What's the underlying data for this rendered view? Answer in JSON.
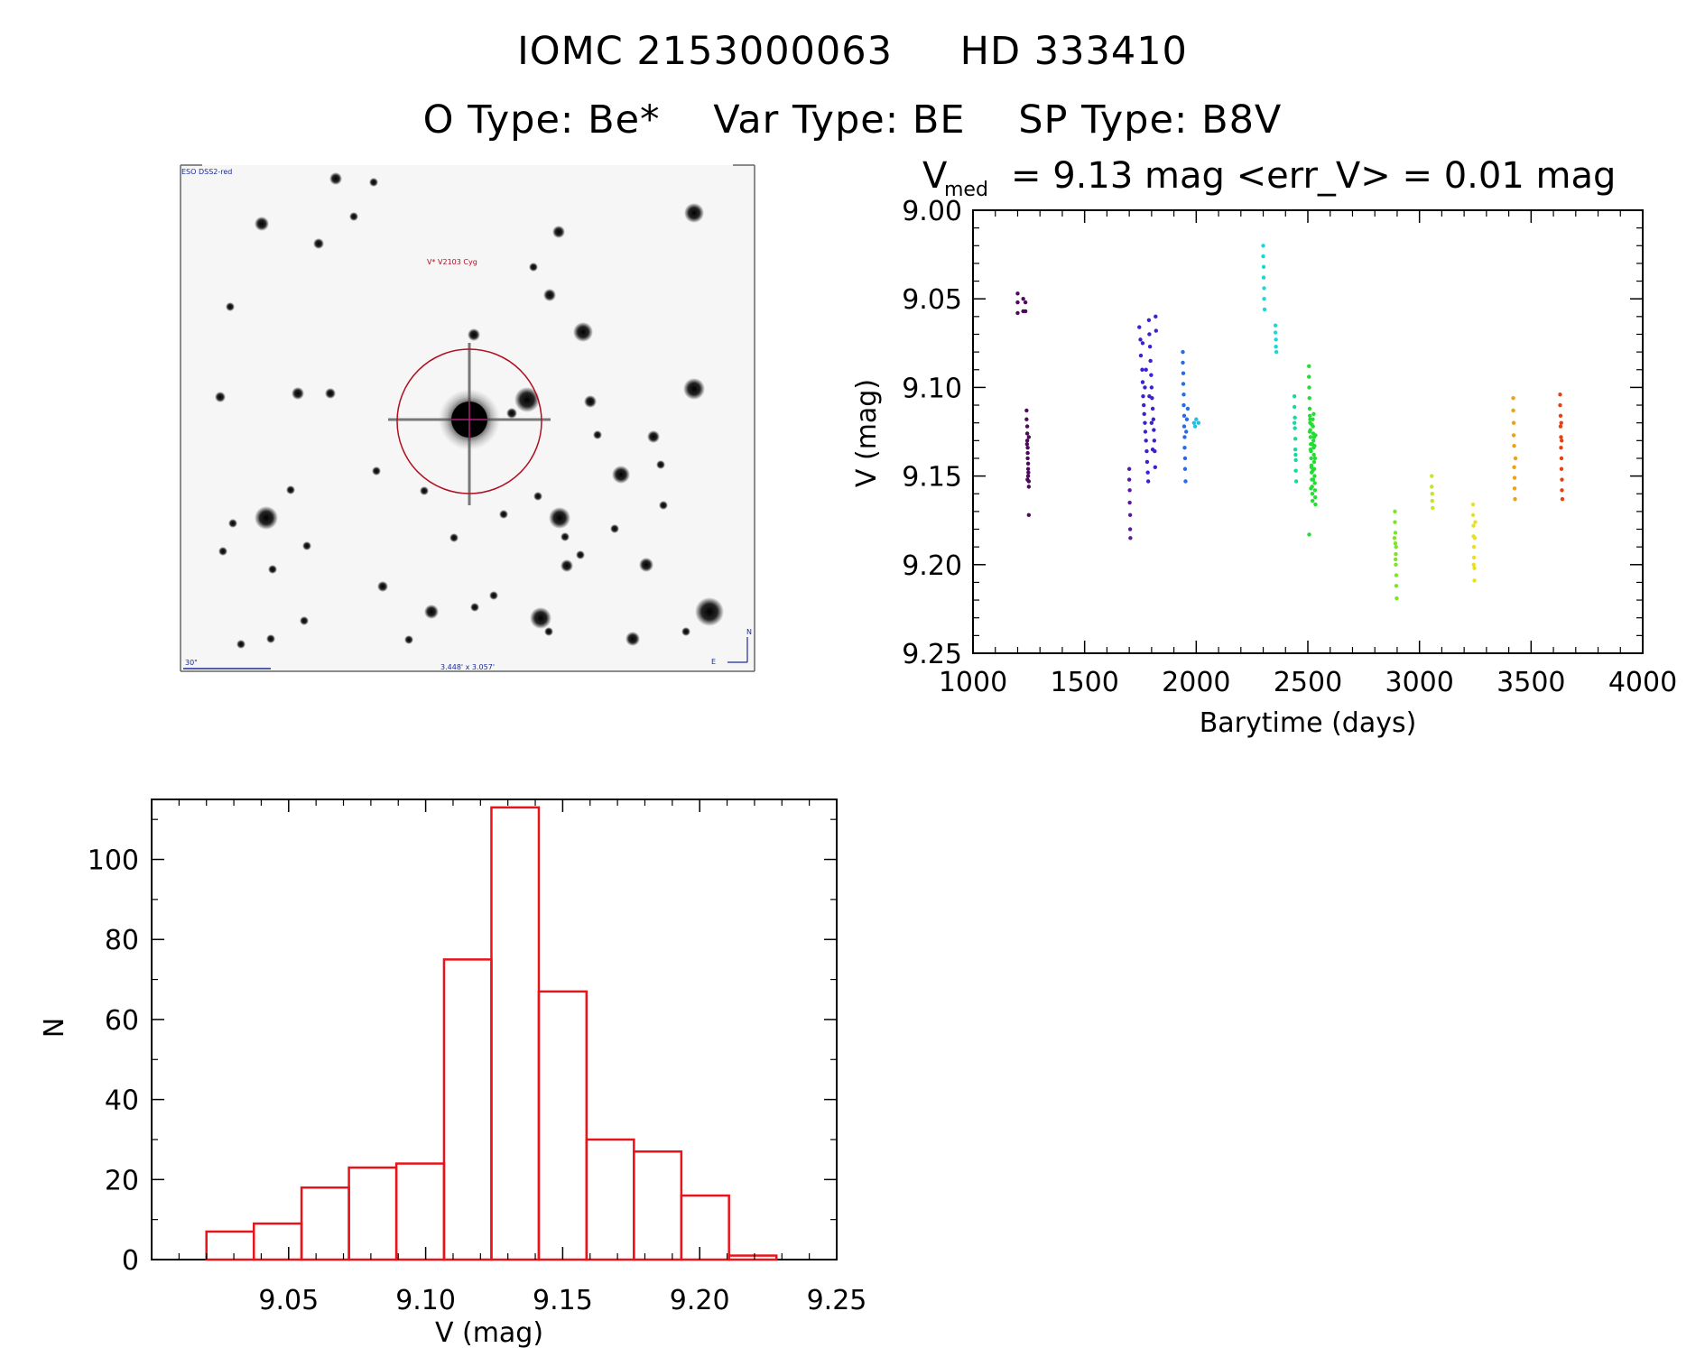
{
  "header": {
    "id_iomc": "IOMC 2153000063",
    "id_name": "HD 333410",
    "o_type": "O Type: Be*",
    "var_type": "Var Type: BE",
    "sp_type": "SP Type: B8V"
  },
  "sky_image": {
    "survey_label": "ESO DSS2-red",
    "target_label": "V* V2103 Cyg",
    "scale_label": "30\"",
    "size_label": "3.448' x 3.057'",
    "north_label": "N",
    "east_label": "E"
  },
  "chart_data": [
    {
      "type": "scatter",
      "title_prefix": "V",
      "title_subscript": "med",
      "title_rest": "= 9.13 mag <err_V> = 0.01 mag",
      "xlabel": "Barytime (days)",
      "ylabel": "V (mag)",
      "xlim": [
        1000,
        4000
      ],
      "ylim": [
        9.25,
        9.0
      ],
      "y_inverted": true,
      "x_ticks": [
        "1000",
        "1500",
        "2000",
        "2500",
        "3000",
        "3500",
        "4000"
      ],
      "y_ticks": [
        "9.00",
        "9.05",
        "9.10",
        "9.15",
        "9.20",
        "9.25"
      ],
      "grid": false,
      "colors_note": "points colored by time (rainbow: purple to red)",
      "series": [
        {
          "color": "#4b0a5a",
          "points": [
            [
              1200,
              9.047
            ],
            [
              1200,
              9.052
            ],
            [
              1200,
              9.058
            ],
            [
              1225,
              9.05
            ],
            [
              1225,
              9.057
            ],
            [
              1235,
              9.052
            ],
            [
              1235,
              9.057
            ]
          ]
        },
        {
          "color": "#4b0a5a",
          "points": [
            [
              1240,
              9.113
            ],
            [
              1240,
              9.118
            ],
            [
              1243,
              9.122
            ],
            [
              1243,
              9.126
            ],
            [
              1243,
              9.13
            ],
            [
              1245,
              9.134
            ],
            [
              1245,
              9.137
            ],
            [
              1245,
              9.14
            ],
            [
              1247,
              9.143
            ],
            [
              1247,
              9.146
            ],
            [
              1247,
              9.15
            ],
            [
              1250,
              9.153
            ],
            [
              1250,
              9.156
            ],
            [
              1250,
              9.128
            ],
            [
              1242,
              9.132
            ],
            [
              1248,
              9.148
            ],
            [
              1244,
              9.152
            ],
            [
              1250,
              9.172
            ]
          ]
        },
        {
          "color": "#5a1a9a",
          "points": [
            [
              1700,
              9.146
            ],
            [
              1700,
              9.152
            ],
            [
              1702,
              9.158
            ],
            [
              1702,
              9.165
            ],
            [
              1704,
              9.172
            ],
            [
              1704,
              9.18
            ],
            [
              1705,
              9.185
            ]
          ]
        },
        {
          "color": "#3a22d0",
          "points": [
            [
              1745,
              9.066
            ],
            [
              1750,
              9.073
            ],
            [
              1752,
              9.082
            ],
            [
              1758,
              9.09
            ],
            [
              1760,
              9.097
            ],
            [
              1762,
              9.105
            ],
            [
              1765,
              9.11
            ],
            [
              1767,
              9.115
            ],
            [
              1770,
              9.12
            ],
            [
              1772,
              9.125
            ],
            [
              1775,
              9.13
            ],
            [
              1778,
              9.136
            ],
            [
              1780,
              9.142
            ],
            [
              1783,
              9.148
            ],
            [
              1785,
              9.153
            ],
            [
              1788,
              9.062
            ],
            [
              1790,
              9.07
            ],
            [
              1793,
              9.077
            ],
            [
              1795,
              9.085
            ],
            [
              1798,
              9.093
            ],
            [
              1800,
              9.1
            ],
            [
              1802,
              9.106
            ],
            [
              1805,
              9.112
            ],
            [
              1808,
              9.118
            ],
            [
              1810,
              9.124
            ],
            [
              1812,
              9.13
            ],
            [
              1814,
              9.136
            ],
            [
              1816,
              9.145
            ],
            [
              1818,
              9.06
            ],
            [
              1820,
              9.068
            ],
            [
              1760,
              9.075
            ],
            [
              1775,
              9.09
            ],
            [
              1790,
              9.105
            ],
            [
              1805,
              9.135
            ],
            [
              1770,
              9.1
            ],
            [
              1800,
              9.12
            ]
          ]
        },
        {
          "color": "#2a6ae8",
          "points": [
            [
              1940,
              9.08
            ],
            [
              1940,
              9.086
            ],
            [
              1942,
              9.092
            ],
            [
              1942,
              9.098
            ],
            [
              1944,
              9.104
            ],
            [
              1944,
              9.11
            ],
            [
              1946,
              9.116
            ],
            [
              1946,
              9.122
            ],
            [
              1948,
              9.128
            ],
            [
              1948,
              9.134
            ],
            [
              1950,
              9.14
            ],
            [
              1950,
              9.146
            ],
            [
              1952,
              9.153
            ],
            [
              1955,
              9.125
            ],
            [
              1958,
              9.118
            ],
            [
              1962,
              9.112
            ]
          ]
        },
        {
          "color": "#22c0e0",
          "points": [
            [
              1990,
              9.12
            ],
            [
              2000,
              9.118
            ],
            [
              2010,
              9.12
            ],
            [
              1995,
              9.122
            ]
          ]
        },
        {
          "color": "#18d8d8",
          "points": [
            [
              2300,
              9.02
            ],
            [
              2300,
              9.026
            ],
            [
              2302,
              9.032
            ],
            [
              2302,
              9.038
            ],
            [
              2304,
              9.044
            ],
            [
              2304,
              9.05
            ],
            [
              2306,
              9.056
            ],
            [
              2355,
              9.065
            ],
            [
              2355,
              9.069
            ],
            [
              2357,
              9.073
            ],
            [
              2357,
              9.077
            ],
            [
              2359,
              9.08
            ]
          ]
        },
        {
          "color": "#18d8a0",
          "points": [
            [
              2440,
              9.105
            ],
            [
              2440,
              9.111
            ],
            [
              2442,
              9.117
            ],
            [
              2442,
              9.123
            ],
            [
              2444,
              9.129
            ],
            [
              2444,
              9.135
            ],
            [
              2446,
              9.141
            ],
            [
              2446,
              9.147
            ],
            [
              2448,
              9.153
            ],
            [
              2440,
              9.12
            ],
            [
              2445,
              9.138
            ]
          ]
        },
        {
          "color": "#22dd33",
          "points": [
            [
              2505,
              9.088
            ],
            [
              2505,
              9.094
            ],
            [
              2506,
              9.1
            ],
            [
              2507,
              9.106
            ],
            [
              2508,
              9.112
            ],
            [
              2509,
              9.116
            ],
            [
              2510,
              9.12
            ],
            [
              2511,
              9.124
            ],
            [
              2512,
              9.128
            ],
            [
              2513,
              9.132
            ],
            [
              2514,
              9.136
            ],
            [
              2515,
              9.14
            ],
            [
              2516,
              9.144
            ],
            [
              2517,
              9.148
            ],
            [
              2518,
              9.152
            ],
            [
              2519,
              9.156
            ],
            [
              2520,
              9.16
            ],
            [
              2521,
              9.164
            ],
            [
              2522,
              9.118
            ],
            [
              2523,
              9.122
            ],
            [
              2524,
              9.126
            ],
            [
              2525,
              9.13
            ],
            [
              2526,
              9.134
            ],
            [
              2527,
              9.138
            ],
            [
              2528,
              9.142
            ],
            [
              2529,
              9.146
            ],
            [
              2530,
              9.15
            ],
            [
              2531,
              9.154
            ],
            [
              2532,
              9.158
            ],
            [
              2533,
              9.162
            ],
            [
              2534,
              9.166
            ],
            [
              2508,
              9.125
            ],
            [
              2512,
              9.135
            ],
            [
              2516,
              9.145
            ],
            [
              2520,
              9.132
            ],
            [
              2524,
              9.152
            ],
            [
              2528,
              9.128
            ],
            [
              2532,
              9.14
            ],
            [
              2510,
              9.118
            ],
            [
              2514,
              9.157
            ],
            [
              2518,
              9.121
            ],
            [
              2522,
              9.147
            ],
            [
              2526,
              9.115
            ],
            [
              2530,
              9.133
            ],
            [
              2534,
              9.127
            ],
            [
              2506,
              9.183
            ]
          ]
        },
        {
          "color": "#7ae820",
          "points": [
            [
              2890,
              9.17
            ],
            [
              2890,
              9.176
            ],
            [
              2892,
              9.182
            ],
            [
              2892,
              9.188
            ],
            [
              2894,
              9.194
            ],
            [
              2894,
              9.2
            ],
            [
              2896,
              9.206
            ],
            [
              2896,
              9.212
            ],
            [
              2898,
              9.219
            ],
            [
              2888,
              9.185
            ],
            [
              2895,
              9.19
            ],
            [
              2893,
              9.197
            ]
          ]
        },
        {
          "color": "#c2e820",
          "points": [
            [
              3055,
              9.15
            ],
            [
              3055,
              9.156
            ],
            [
              3057,
              9.16
            ],
            [
              3057,
              9.164
            ],
            [
              3059,
              9.168
            ]
          ]
        },
        {
          "color": "#e8e020",
          "points": [
            [
              3240,
              9.166
            ],
            [
              3240,
              9.172
            ],
            [
              3242,
              9.178
            ],
            [
              3242,
              9.184
            ],
            [
              3244,
              9.19
            ],
            [
              3244,
              9.196
            ],
            [
              3246,
              9.202
            ],
            [
              3246,
              9.209
            ],
            [
              3248,
              9.185
            ],
            [
              3250,
              9.176
            ],
            [
              3243,
              9.2
            ]
          ]
        },
        {
          "color": "#f0a010",
          "points": [
            [
              3420,
              9.106
            ],
            [
              3420,
              9.113
            ],
            [
              3422,
              9.12
            ],
            [
              3422,
              9.127
            ],
            [
              3424,
              9.133
            ],
            [
              3424,
              9.145
            ],
            [
              3426,
              9.151
            ],
            [
              3426,
              9.157
            ],
            [
              3428,
              9.163
            ],
            [
              3430,
              9.14
            ]
          ]
        },
        {
          "color": "#e84010",
          "points": [
            [
              3630,
              9.104
            ],
            [
              3630,
              9.11
            ],
            [
              3632,
              9.116
            ],
            [
              3632,
              9.122
            ],
            [
              3634,
              9.128
            ],
            [
              3634,
              9.134
            ],
            [
              3636,
              9.14
            ],
            [
              3636,
              9.146
            ],
            [
              3638,
              9.152
            ],
            [
              3638,
              9.158
            ],
            [
              3640,
              9.163
            ],
            [
              3635,
              9.12
            ],
            [
              3637,
              9.13
            ]
          ]
        }
      ]
    },
    {
      "type": "bar",
      "subtype": "histogram",
      "xlabel": "V (mag)",
      "ylabel": "N",
      "xlim": [
        9.0,
        9.25
      ],
      "ylim": [
        0,
        115
      ],
      "x_ticks": [
        "9.05",
        "9.10",
        "9.15",
        "9.20",
        "9.25"
      ],
      "y_ticks": [
        "0",
        "20",
        "40",
        "60",
        "80",
        "100"
      ],
      "bar_color": "#e8141a",
      "bin_edges": [
        9.02,
        9.0373,
        9.0547,
        9.072,
        9.0893,
        9.1067,
        9.124,
        9.1413,
        9.1587,
        9.176,
        9.1933,
        9.2107,
        9.228
      ],
      "values": [
        7,
        9,
        18,
        23,
        24,
        75,
        113,
        67,
        30,
        27,
        16,
        1
      ]
    }
  ]
}
